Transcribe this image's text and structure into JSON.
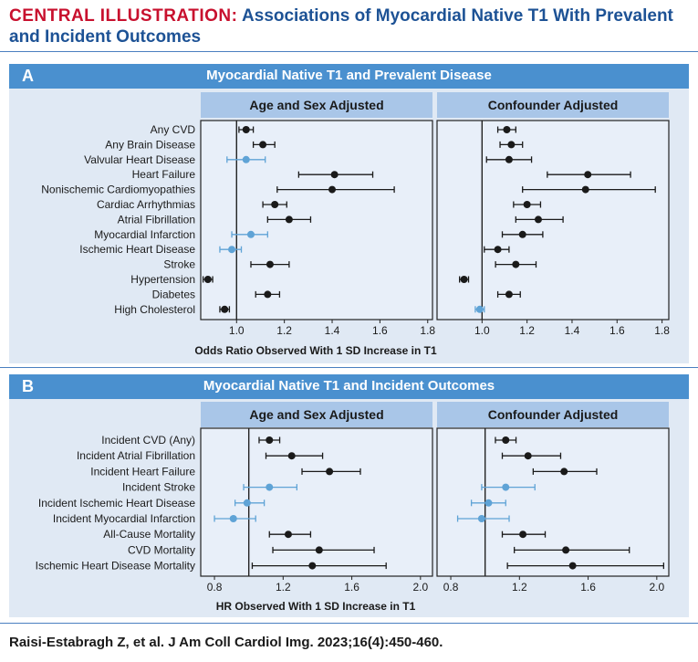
{
  "title": {
    "lead": "CENTRAL ILLUSTRATION:",
    "rest": "Associations of Myocardial Native T1 With Prevalent and Incident Outcomes"
  },
  "colors": {
    "significant": "#1a1a1a",
    "nonsignificant": "#5fa3d6",
    "header": "#4a90cf",
    "subheader": "#a9c6e8",
    "plotbg": "#e8eff9",
    "panelbg": "#e0e9f4"
  },
  "panel_a": {
    "letter": "A",
    "title": "Myocardial Native T1 and Prevalent Disease",
    "left_subtitle": "Age and Sex Adjusted",
    "right_subtitle": "Confounder Adjusted",
    "xlabel": "Odds Ratio Observed With 1 SD Increase in T1"
  },
  "panel_b": {
    "letter": "B",
    "title": "Myocardial Native T1 and Incident Outcomes",
    "left_subtitle": "Age and Sex Adjusted",
    "right_subtitle": "Confounder Adjusted",
    "xlabel": "HR Observed With 1 SD Increase in T1"
  },
  "chart_data": [
    {
      "type": "scatter",
      "subtype": "forest",
      "panel": "A",
      "title": "Age and Sex Adjusted",
      "xlabel": "Odds Ratio Observed With 1 SD Increase in T1",
      "xlim": [
        0.85,
        1.82
      ],
      "ref": 1.0,
      "ticks": [
        "1.0",
        "1.2",
        "1.4",
        "1.6",
        "1.8"
      ],
      "categories": [
        "Any CVD",
        "Any Brain Disease",
        "Valvular Heart Disease",
        "Heart Failure",
        "Nonischemic Cardiomyopathies",
        "Cardiac Arrhythmias",
        "Atrial Fibrillation",
        "Myocardial Infarction",
        "Ischemic Heart Disease",
        "Stroke",
        "Hypertension",
        "Diabetes",
        "High Cholesterol"
      ],
      "est": [
        1.04,
        1.11,
        1.04,
        1.41,
        1.4,
        1.16,
        1.22,
        1.06,
        0.98,
        1.14,
        0.88,
        1.13,
        0.95
      ],
      "lo": [
        1.01,
        1.07,
        0.96,
        1.26,
        1.17,
        1.11,
        1.13,
        0.98,
        0.93,
        1.06,
        0.86,
        1.08,
        0.93
      ],
      "hi": [
        1.07,
        1.16,
        1.12,
        1.57,
        1.66,
        1.21,
        1.31,
        1.13,
        1.02,
        1.22,
        0.9,
        1.18,
        0.97
      ],
      "sig": [
        true,
        true,
        false,
        true,
        true,
        true,
        true,
        false,
        false,
        true,
        true,
        true,
        true
      ]
    },
    {
      "type": "scatter",
      "subtype": "forest",
      "panel": "A",
      "title": "Confounder Adjusted",
      "xlabel": "Odds Ratio Observed With 1 SD Increase in T1",
      "xlim": [
        0.8,
        1.83
      ],
      "ref": 1.0,
      "ticks": [
        "1.0",
        "1.2",
        "1.4",
        "1.6",
        "1.8"
      ],
      "est": [
        1.11,
        1.13,
        1.12,
        1.47,
        1.46,
        1.2,
        1.25,
        1.18,
        1.07,
        1.15,
        0.92,
        1.12,
        0.99
      ],
      "lo": [
        1.07,
        1.08,
        1.02,
        1.29,
        1.18,
        1.14,
        1.15,
        1.09,
        1.01,
        1.06,
        0.9,
        1.07,
        0.97
      ],
      "hi": [
        1.15,
        1.18,
        1.22,
        1.66,
        1.77,
        1.26,
        1.36,
        1.27,
        1.12,
        1.24,
        0.94,
        1.17,
        1.01
      ],
      "sig": [
        true,
        true,
        true,
        true,
        true,
        true,
        true,
        true,
        true,
        true,
        true,
        true,
        false
      ]
    },
    {
      "type": "scatter",
      "subtype": "forest",
      "panel": "B",
      "title": "Age and Sex Adjusted",
      "xlabel": "HR Observed With 1 SD Increase in T1",
      "xlim": [
        0.72,
        2.07
      ],
      "ref": 1.0,
      "ticks": [
        "0.8",
        "1.2",
        "1.6",
        "2.0"
      ],
      "categories": [
        "Incident CVD (Any)",
        "Incident Atrial Fibrillation",
        "Incident Heart Failure",
        "Incident Stroke",
        "Incident Ischemic Heart Disease",
        "Incident Myocardial Infarction",
        "All-Cause Mortality",
        "CVD Mortality",
        "Ischemic Heart Disease Mortality"
      ],
      "est": [
        1.12,
        1.25,
        1.47,
        1.12,
        0.99,
        0.91,
        1.23,
        1.41,
        1.37
      ],
      "lo": [
        1.06,
        1.1,
        1.31,
        0.97,
        0.92,
        0.8,
        1.12,
        1.14,
        1.02
      ],
      "hi": [
        1.18,
        1.43,
        1.65,
        1.28,
        1.09,
        1.04,
        1.36,
        1.73,
        1.8
      ],
      "sig": [
        true,
        true,
        true,
        false,
        false,
        false,
        true,
        true,
        true
      ]
    },
    {
      "type": "scatter",
      "subtype": "forest",
      "panel": "B",
      "title": "Confounder Adjusted",
      "xlabel": "HR Observed With 1 SD Increase in T1",
      "xlim": [
        0.72,
        2.07
      ],
      "ref": 1.0,
      "ticks": [
        "0.8",
        "1.2",
        "1.6",
        "2.0"
      ],
      "est": [
        1.12,
        1.25,
        1.46,
        1.12,
        1.02,
        0.98,
        1.22,
        1.47,
        1.51
      ],
      "lo": [
        1.06,
        1.1,
        1.28,
        0.98,
        0.92,
        0.84,
        1.1,
        1.17,
        1.13
      ],
      "hi": [
        1.18,
        1.44,
        1.65,
        1.29,
        1.12,
        1.14,
        1.35,
        1.84,
        2.04
      ],
      "sig": [
        true,
        true,
        true,
        false,
        false,
        false,
        true,
        true,
        true
      ]
    }
  ],
  "citation": "Raisi-Estabragh Z, et al. J Am Coll Cardiol Img. 2023;16(4):450-460."
}
